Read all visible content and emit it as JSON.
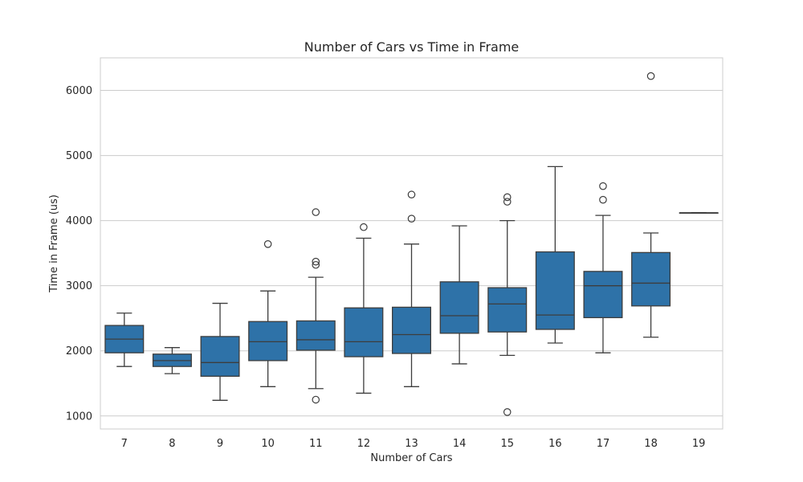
{
  "chart_data": {
    "type": "box",
    "title": "Number of Cars vs Time in Frame",
    "xlabel": "Number of Cars",
    "ylabel": "Time in Frame (us)",
    "ylim": [
      800,
      6500
    ],
    "yticks": [
      1000,
      2000,
      3000,
      4000,
      5000,
      6000
    ],
    "grid": true,
    "legend": "none",
    "box_color": "#2e72a8",
    "line_color": "#3d3d3d",
    "categories": [
      "7",
      "8",
      "9",
      "10",
      "11",
      "12",
      "13",
      "14",
      "15",
      "16",
      "17",
      "18",
      "19"
    ],
    "boxes": [
      {
        "category": "7",
        "whisker_low": 1760,
        "q1": 1970,
        "median": 2180,
        "q3": 2390,
        "whisker_high": 2580,
        "outliers": []
      },
      {
        "category": "8",
        "whisker_low": 1650,
        "q1": 1760,
        "median": 1850,
        "q3": 1950,
        "whisker_high": 2050,
        "outliers": []
      },
      {
        "category": "9",
        "whisker_low": 1240,
        "q1": 1610,
        "median": 1820,
        "q3": 2220,
        "whisker_high": 2730,
        "outliers": []
      },
      {
        "category": "10",
        "whisker_low": 1450,
        "q1": 1850,
        "median": 2140,
        "q3": 2450,
        "whisker_high": 2920,
        "outliers": [
          3640
        ]
      },
      {
        "category": "11",
        "whisker_low": 1420,
        "q1": 2010,
        "median": 2170,
        "q3": 2460,
        "whisker_high": 3130,
        "outliers": [
          1250,
          3320,
          3370,
          4130
        ]
      },
      {
        "category": "12",
        "whisker_low": 1350,
        "q1": 1910,
        "median": 2140,
        "q3": 2660,
        "whisker_high": 3730,
        "outliers": [
          3900
        ]
      },
      {
        "category": "13",
        "whisker_low": 1450,
        "q1": 1960,
        "median": 2250,
        "q3": 2670,
        "whisker_high": 3640,
        "outliers": [
          4030,
          4400
        ]
      },
      {
        "category": "14",
        "whisker_low": 1800,
        "q1": 2270,
        "median": 2540,
        "q3": 3060,
        "whisker_high": 3920,
        "outliers": []
      },
      {
        "category": "15",
        "whisker_low": 1930,
        "q1": 2290,
        "median": 2720,
        "q3": 2970,
        "whisker_high": 4000,
        "outliers": [
          1060,
          4290,
          4360
        ]
      },
      {
        "category": "16",
        "whisker_low": 2120,
        "q1": 2330,
        "median": 2550,
        "q3": 3520,
        "whisker_high": 4830,
        "outliers": []
      },
      {
        "category": "17",
        "whisker_low": 1970,
        "q1": 2510,
        "median": 3000,
        "q3": 3220,
        "whisker_high": 4080,
        "outliers": [
          4320,
          4530
        ]
      },
      {
        "category": "18",
        "whisker_low": 2210,
        "q1": 2690,
        "median": 3040,
        "q3": 3510,
        "whisker_high": 3810,
        "outliers": [
          6220
        ]
      },
      {
        "category": "19",
        "whisker_low": 4120,
        "q1": 4120,
        "median": 4120,
        "q3": 4120,
        "whisker_high": 4120,
        "outliers": []
      }
    ]
  }
}
